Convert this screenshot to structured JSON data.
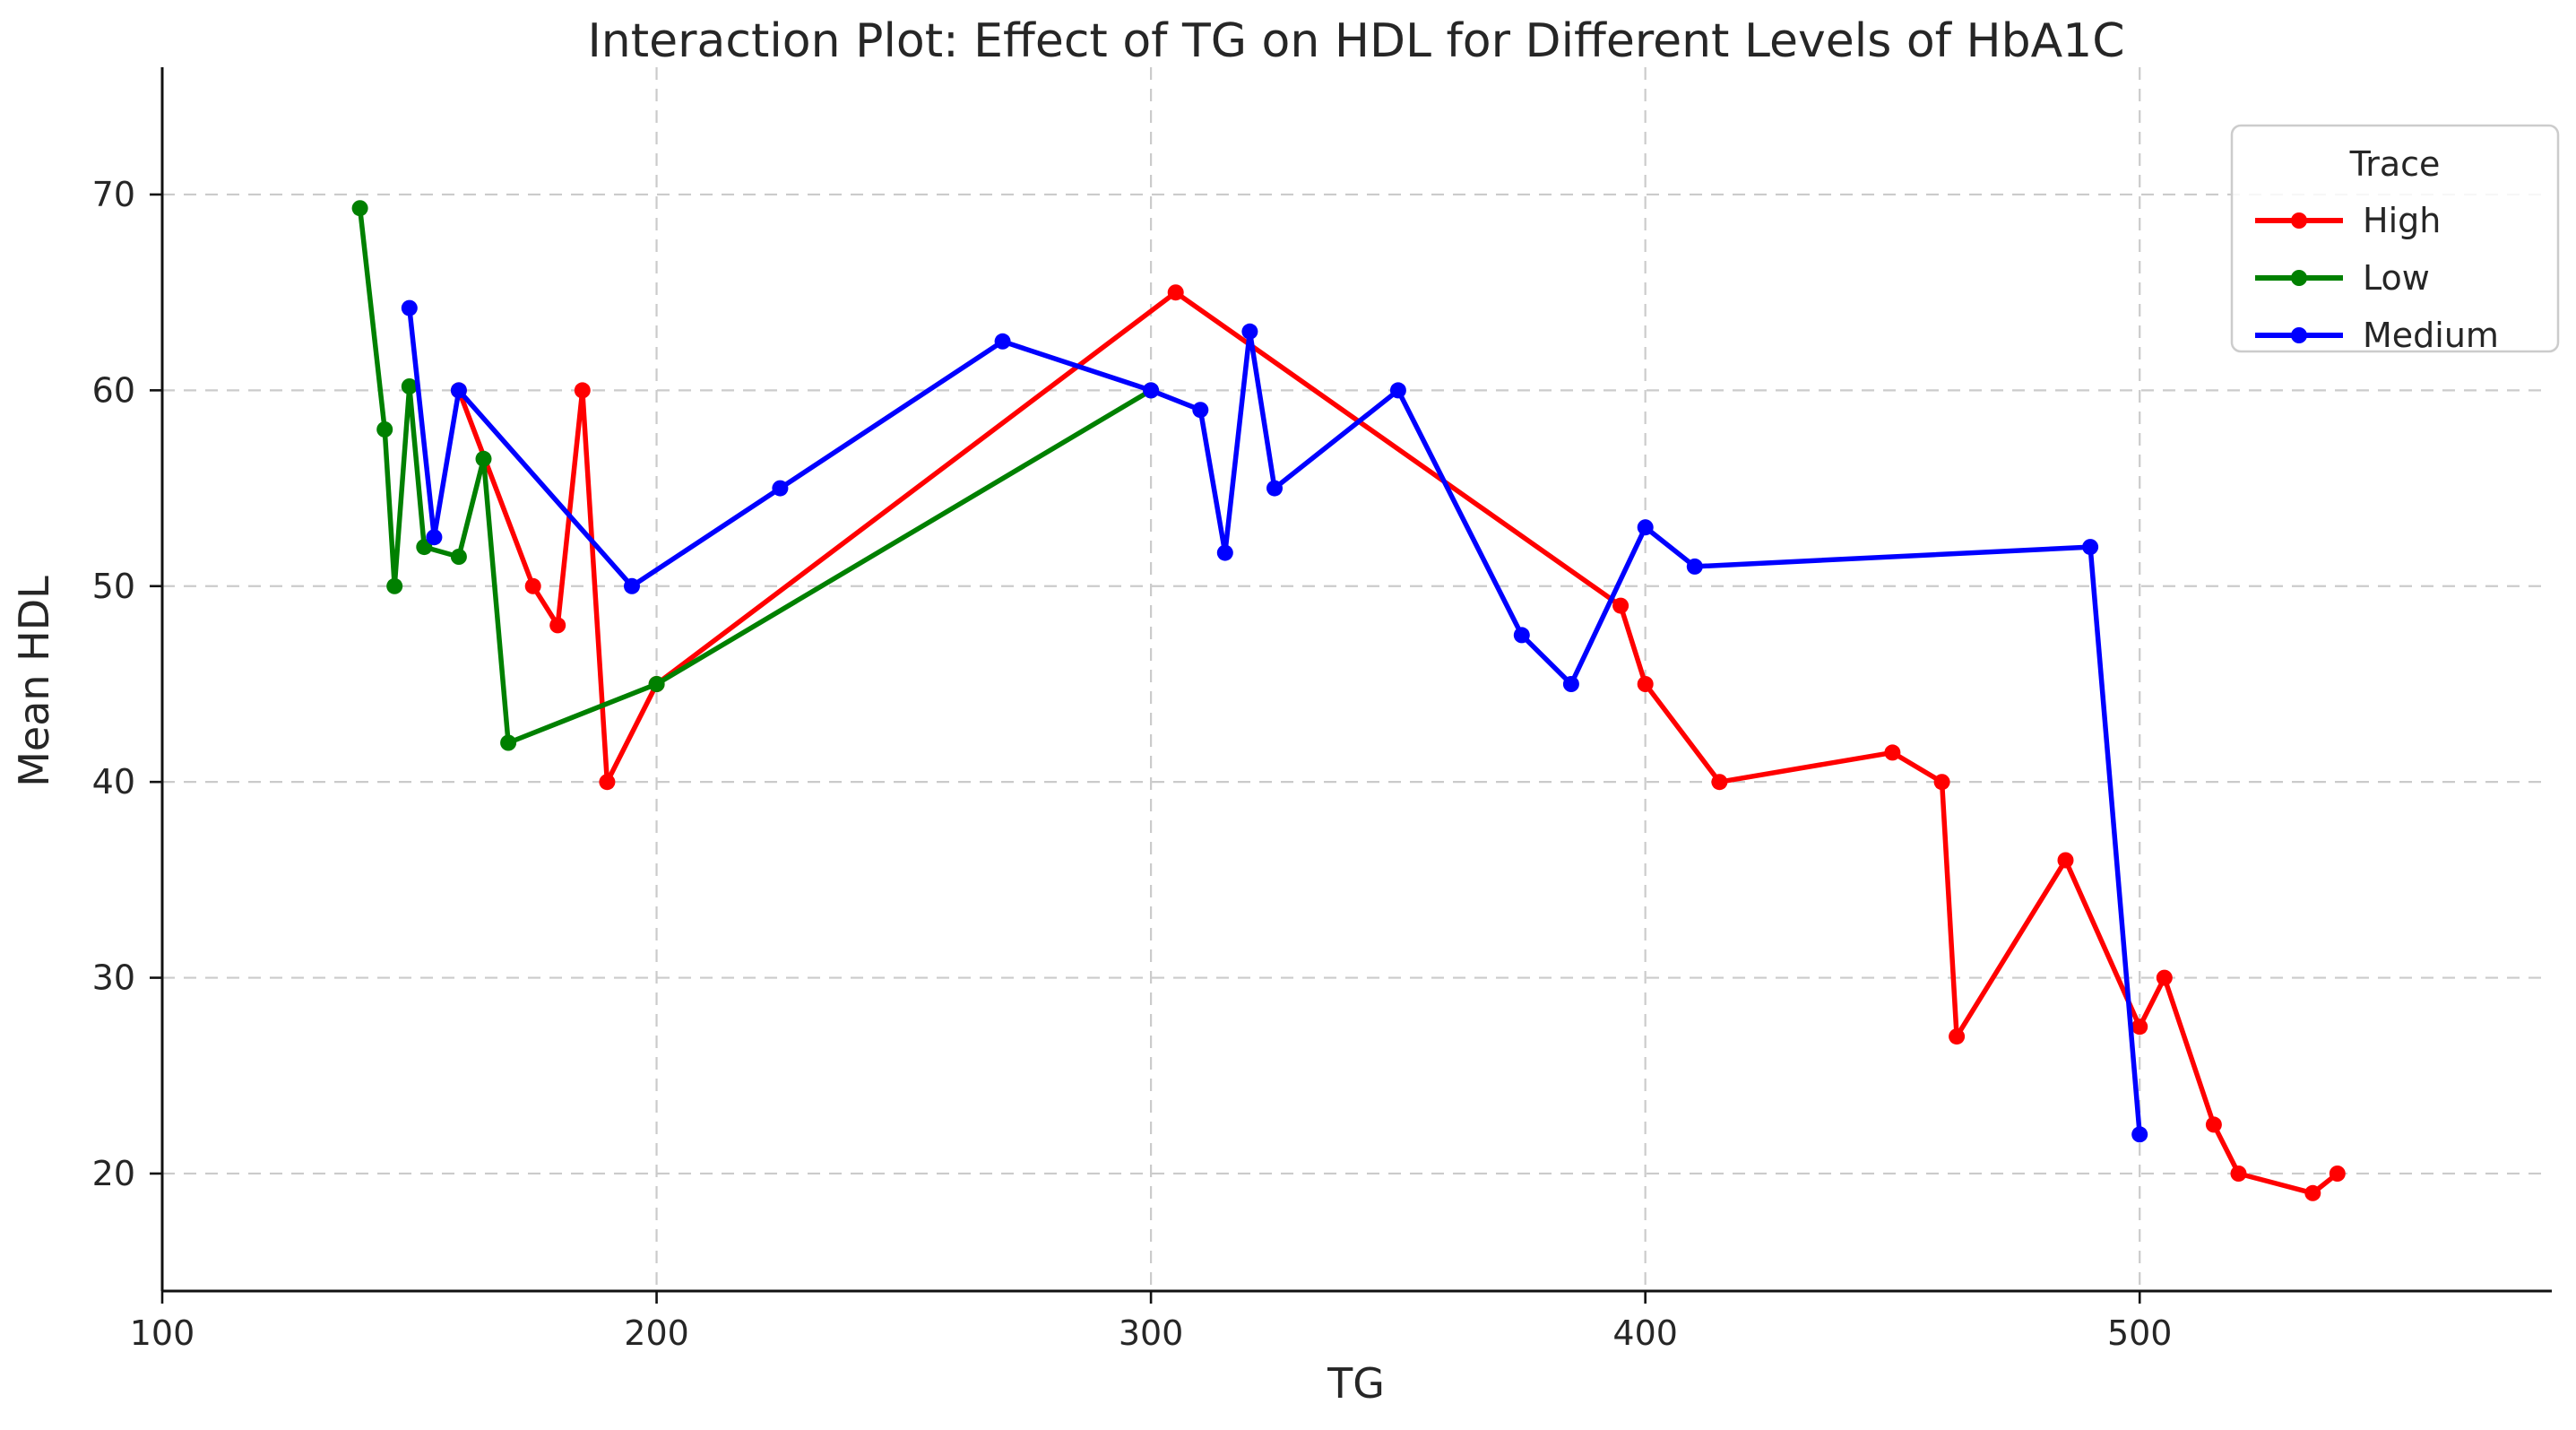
{
  "chart_data": {
    "type": "line",
    "title": "Interaction Plot: Effect of TG on HDL for Different Levels of HbA1C",
    "xlabel": "TG",
    "ylabel": "Mean HDL",
    "legend_title": "Trace",
    "legend_position": "upper right",
    "grid": true,
    "xlim": [
      100,
      583
    ],
    "ylim": [
      14,
      76.5
    ],
    "xticks": [
      100,
      200,
      300,
      400,
      500
    ],
    "yticks": [
      20,
      30,
      40,
      50,
      60,
      70
    ],
    "series": [
      {
        "name": "High",
        "color": "#ff0000",
        "points": [
          [
            160,
            60
          ],
          [
            175,
            50
          ],
          [
            180,
            48
          ],
          [
            185,
            60
          ],
          [
            190,
            40
          ],
          [
            200,
            45
          ],
          [
            305,
            65
          ],
          [
            395,
            49
          ],
          [
            400,
            45
          ],
          [
            415,
            40
          ],
          [
            450,
            41.5
          ],
          [
            460,
            40
          ],
          [
            463,
            27
          ],
          [
            485,
            36
          ],
          [
            500,
            27.5
          ],
          [
            505,
            30
          ],
          [
            515,
            22.5
          ],
          [
            520,
            20
          ],
          [
            535,
            19
          ],
          [
            540,
            20
          ]
        ]
      },
      {
        "name": "Low",
        "color": "#008000",
        "points": [
          [
            140,
            69.3
          ],
          [
            145,
            58
          ],
          [
            147,
            50
          ],
          [
            150,
            60.2
          ],
          [
            153,
            52
          ],
          [
            160,
            51.5
          ],
          [
            165,
            56.5
          ],
          [
            170,
            42
          ],
          [
            200,
            45
          ],
          [
            300,
            60
          ]
        ]
      },
      {
        "name": "Medium",
        "color": "#0000ff",
        "points": [
          [
            150,
            64.2
          ],
          [
            155,
            52.5
          ],
          [
            160,
            60
          ],
          [
            195,
            50
          ],
          [
            225,
            55
          ],
          [
            270,
            62.5
          ],
          [
            300,
            60
          ],
          [
            310,
            59
          ],
          [
            315,
            51.7
          ],
          [
            320,
            63
          ],
          [
            325,
            55
          ],
          [
            350,
            60
          ],
          [
            375,
            47.5
          ],
          [
            385,
            45
          ],
          [
            400,
            53
          ],
          [
            410,
            51
          ],
          [
            490,
            52
          ],
          [
            500,
            22
          ]
        ]
      }
    ]
  }
}
